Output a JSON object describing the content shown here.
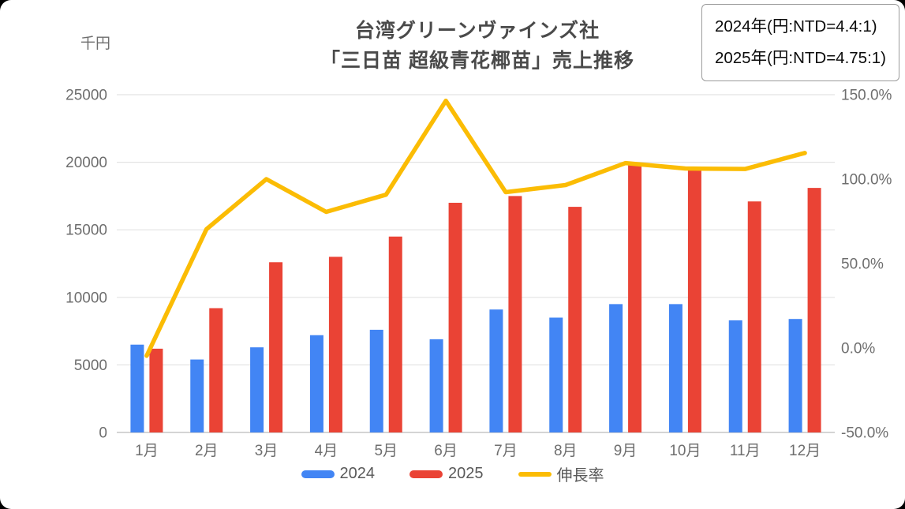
{
  "title": {
    "line1": "台湾グリーンヴァインズ社",
    "line2": "「三日苗 超級青花椰苗」売上推移"
  },
  "info_box": {
    "line1": "2024年(円:NTD=4.4:1)",
    "line2": "2025年(円:NTD=4.75:1)"
  },
  "legend": {
    "items": [
      {
        "label": "2024",
        "color": "#4285F4",
        "type": "bar"
      },
      {
        "label": "2025",
        "color": "#EA4335",
        "type": "bar"
      },
      {
        "label": "伸長率",
        "color": "#FBBC04",
        "type": "line"
      }
    ]
  },
  "colors": {
    "bar_2024": "#4285F4",
    "bar_2025": "#EA4335",
    "growth_line": "#FBBC04",
    "grid": "#e3e3e3",
    "baseline": "#d4d4d4",
    "axis_text": "#6e6e6e",
    "title_text": "#4a4a4a"
  },
  "chart_data": {
    "type": "bar+line combo",
    "title": "台湾グリーンヴァインズ社「三日苗 超級青花椰苗」売上推移",
    "categories": [
      "1月",
      "2月",
      "3月",
      "4月",
      "5月",
      "6月",
      "7月",
      "8月",
      "9月",
      "10月",
      "11月",
      "12月"
    ],
    "series": [
      {
        "name": "2024",
        "type": "bar",
        "axis": "left",
        "color": "#4285F4",
        "values": [
          6500,
          5400,
          6300,
          7200,
          7600,
          6900,
          9100,
          8500,
          9500,
          9500,
          8300,
          8400
        ]
      },
      {
        "name": "2025",
        "type": "bar",
        "axis": "left",
        "color": "#EA4335",
        "values": [
          6200,
          9200,
          12600,
          13000,
          14500,
          17000,
          17500,
          16700,
          19900,
          19600,
          17100,
          18100
        ]
      },
      {
        "name": "伸長率",
        "type": "line",
        "axis": "right",
        "color": "#FBBC04",
        "values": [
          -4.6,
          70.4,
          100.0,
          80.6,
          90.8,
          146.4,
          92.3,
          96.5,
          109.5,
          106.3,
          106.0,
          115.5
        ]
      }
    ],
    "left_axis": {
      "unit": "千円",
      "min": 0,
      "max": 25000,
      "step": 5000,
      "ticks": [
        {
          "value": 0,
          "label": "0"
        },
        {
          "value": 5000,
          "label": "5000"
        },
        {
          "value": 10000,
          "label": "10000"
        },
        {
          "value": 15000,
          "label": "15000"
        },
        {
          "value": 20000,
          "label": "20000"
        },
        {
          "value": 25000,
          "label": "25000"
        }
      ]
    },
    "right_axis": {
      "min": -50,
      "max": 150,
      "step": 50,
      "ticks": [
        {
          "value": -50,
          "label": "-50.0%"
        },
        {
          "value": 0,
          "label": "0.0%"
        },
        {
          "value": 50,
          "label": "50.0%"
        },
        {
          "value": 100,
          "label": "100.0%"
        },
        {
          "value": 150,
          "label": "150.0%"
        }
      ]
    },
    "grid": true,
    "legend_position": "bottom"
  }
}
